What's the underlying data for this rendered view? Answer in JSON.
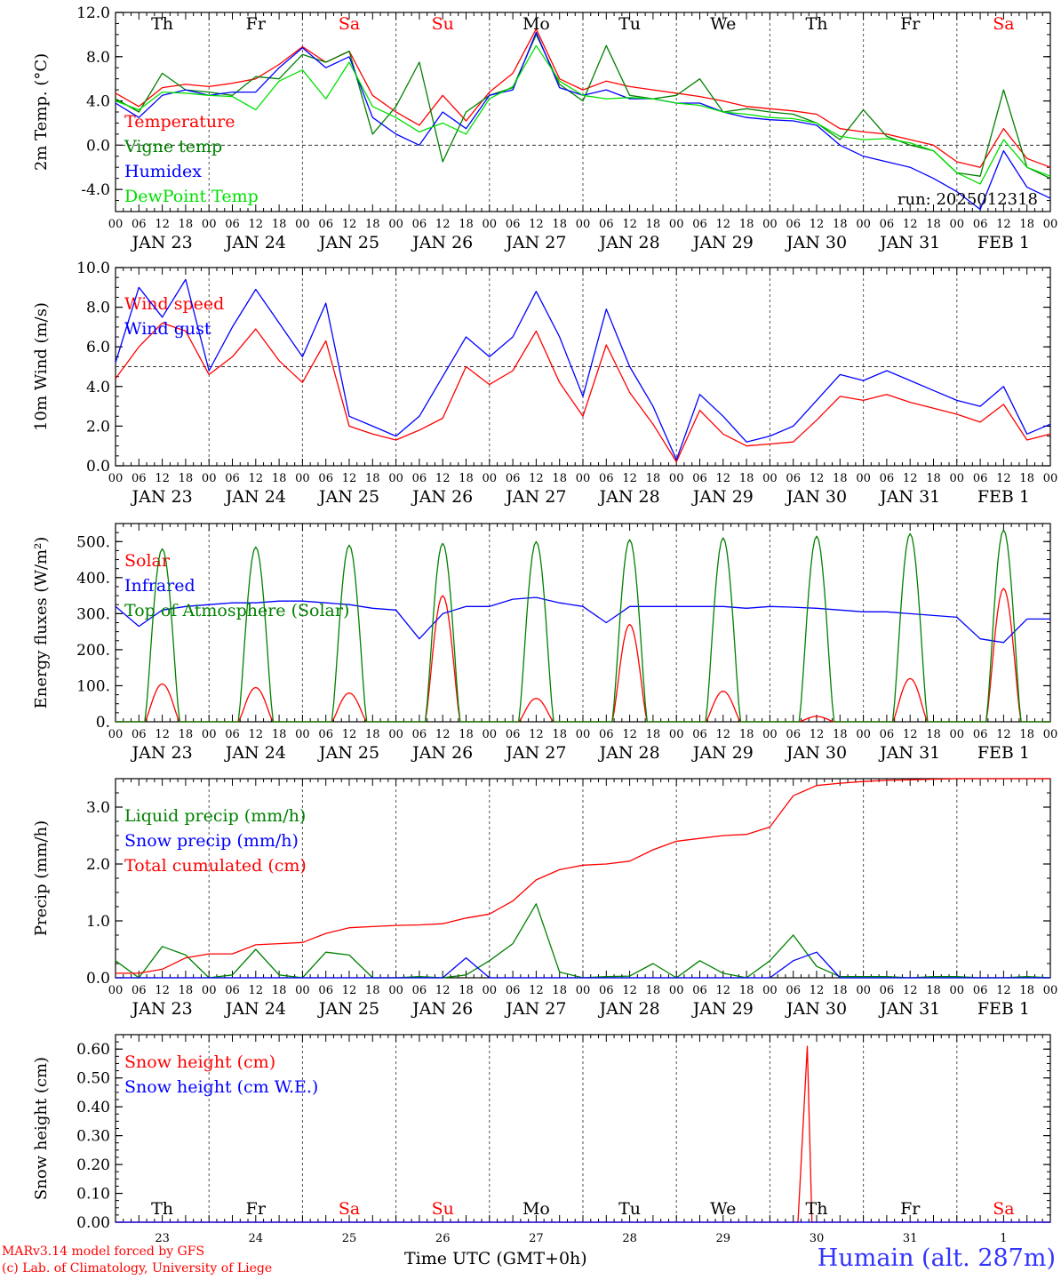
{
  "header": {
    "days_top": [
      "Th",
      "Fr",
      "Sa",
      "Su",
      "Mo",
      "Tu",
      "We",
      "Th",
      "Fr",
      "Sa"
    ],
    "weekend_indices": [
      2,
      3,
      9
    ],
    "hour_labels": [
      "00",
      "06",
      "12",
      "18"
    ],
    "date_labels": [
      "JAN 23",
      "JAN 24",
      "JAN 25",
      "JAN 26",
      "JAN 27",
      "JAN 28",
      "JAN 29",
      "JAN 30",
      "JAN 31",
      "FEB  1"
    ],
    "bottom_day_numbers": [
      "23",
      "24",
      "25",
      "26",
      "27",
      "28",
      "29",
      "30",
      "31",
      "1"
    ]
  },
  "footer": {
    "credit_line1": "MARv3.14 model forced by GFS",
    "credit_line2": "(c) Lab. of Climatology, University of Liege",
    "time_label": "Time UTC (GMT+0h)",
    "location": "Humain (alt. 287m)"
  },
  "colors": {
    "red": "#ff0000",
    "green": "#008000",
    "blue": "#0000ff",
    "lightgreen": "#00e000",
    "location": "#3333ff"
  },
  "chart_data": [
    {
      "type": "line",
      "ylabel": "2m Temp. (°C)",
      "ylim": [
        -6,
        12
      ],
      "yticks": [
        12,
        8,
        4,
        0,
        -4
      ],
      "ytick_labels": [
        "12.0",
        "8.0",
        "4.0",
        "0.0",
        "-4.0"
      ],
      "zero_line": 0,
      "annotation": "run: 2025012318",
      "x_days": [
        0,
        0.25,
        0.5,
        0.75,
        1,
        1.25,
        1.5,
        1.75,
        2,
        2.25,
        2.5,
        2.75,
        3,
        3.25,
        3.5,
        3.75,
        4,
        4.25,
        4.5,
        4.75,
        5,
        5.25,
        5.5,
        5.75,
        6,
        6.25,
        6.5,
        6.75,
        7,
        7.25,
        7.5,
        7.75,
        8,
        8.25,
        8.5,
        8.75,
        9,
        9.25,
        9.5,
        9.75,
        10
      ],
      "series": [
        {
          "name": "Temperature",
          "color": "red",
          "values": [
            4.7,
            3.5,
            5.2,
            5.5,
            5.3,
            5.6,
            6.0,
            7.3,
            8.9,
            7.5,
            8.5,
            4.5,
            3.0,
            1.8,
            4.5,
            2.2,
            4.8,
            6.5,
            10.5,
            6.0,
            5.0,
            5.8,
            5.3,
            5.0,
            4.7,
            4.4,
            4.0,
            3.5,
            3.3,
            3.1,
            2.8,
            1.5,
            1.2,
            1.0,
            0.5,
            0,
            -1.5,
            -2.0,
            1.5,
            -1.2,
            -2.0
          ]
        },
        {
          "name": "Vigne temp",
          "color": "green",
          "values": [
            4.2,
            3.0,
            6.5,
            5.0,
            4.8,
            4.5,
            6.2,
            6.0,
            8.2,
            7.5,
            8.5,
            1.0,
            3.5,
            7.5,
            -1.5,
            3.0,
            4.5,
            5.2,
            10.0,
            5.5,
            4.0,
            9.0,
            4.5,
            4.2,
            4.5,
            6.0,
            3.0,
            3.3,
            3.0,
            2.8,
            2.0,
            0.5,
            3.2,
            0.8,
            0,
            -0.5,
            -2.5,
            -2.8,
            5.0,
            -2.0,
            -3.0
          ]
        },
        {
          "name": "Humidex",
          "color": "blue",
          "values": [
            3.8,
            2.5,
            4.5,
            5.0,
            4.5,
            4.8,
            4.8,
            7.0,
            8.8,
            7.0,
            8.0,
            2.5,
            1.0,
            0,
            3.0,
            1.5,
            4.5,
            5.0,
            10.2,
            5.2,
            4.5,
            5.0,
            4.2,
            4.2,
            3.8,
            3.8,
            3.0,
            2.5,
            2.3,
            2.2,
            1.8,
            0,
            -1.0,
            -1.5,
            -2.0,
            -3.0,
            -4.2,
            -5.8,
            -0.5,
            -3.8,
            -4.8
          ]
        },
        {
          "name": "DewPoint Temp",
          "color": "lightgreen",
          "values": [
            4.0,
            3.2,
            4.8,
            4.7,
            4.5,
            4.4,
            3.2,
            5.8,
            6.8,
            4.2,
            7.5,
            3.5,
            2.5,
            1.2,
            2.0,
            1.0,
            4.2,
            5.3,
            9.0,
            5.8,
            4.5,
            4.2,
            4.3,
            4.2,
            3.8,
            3.6,
            3.0,
            2.8,
            2.5,
            2.4,
            2.0,
            0.8,
            0.5,
            0.6,
            0.2,
            -0.5,
            -2.5,
            -3.5,
            0.5,
            -2.0,
            -2.8
          ]
        }
      ]
    },
    {
      "type": "line",
      "ylabel": "10m Wind (m/s)",
      "ylim": [
        0,
        10
      ],
      "yticks": [
        10,
        8,
        6,
        4,
        2,
        0
      ],
      "ytick_labels": [
        "10.0",
        "8.0",
        "6.0",
        "4.0",
        "2.0",
        "0.0"
      ],
      "ref_line": 5,
      "x_days": [
        0,
        0.25,
        0.5,
        0.75,
        1,
        1.25,
        1.5,
        1.75,
        2,
        2.25,
        2.5,
        2.75,
        3,
        3.25,
        3.5,
        3.75,
        4,
        4.25,
        4.5,
        4.75,
        5,
        5.25,
        5.5,
        5.75,
        6,
        6.25,
        6.5,
        6.75,
        7,
        7.25,
        7.5,
        7.75,
        8,
        8.25,
        8.5,
        8.75,
        9,
        9.25,
        9.5,
        9.75,
        10
      ],
      "series": [
        {
          "name": "Wind speed",
          "color": "red",
          "values": [
            4.4,
            6.0,
            7.2,
            6.8,
            4.6,
            5.5,
            6.9,
            5.3,
            4.2,
            6.3,
            2.0,
            1.6,
            1.3,
            1.8,
            2.4,
            5.0,
            4.1,
            4.8,
            6.8,
            4.2,
            2.5,
            6.1,
            3.7,
            2.1,
            0.2,
            2.8,
            1.6,
            1.0,
            1.1,
            1.2,
            2.3,
            3.5,
            3.3,
            3.6,
            3.2,
            2.9,
            2.6,
            2.2,
            3.1,
            1.3,
            1.6
          ]
        },
        {
          "name": "Wind gust",
          "color": "blue",
          "values": [
            5.2,
            9.0,
            7.5,
            9.4,
            4.8,
            7.0,
            8.9,
            7.2,
            5.5,
            8.2,
            2.5,
            2.0,
            1.5,
            2.5,
            4.5,
            6.5,
            5.5,
            6.5,
            8.8,
            6.5,
            3.5,
            7.9,
            5.0,
            3.0,
            0.3,
            3.6,
            2.5,
            1.2,
            1.5,
            2.0,
            3.3,
            4.6,
            4.3,
            4.8,
            4.3,
            3.8,
            3.3,
            3.0,
            4.0,
            1.6,
            2.1
          ]
        }
      ]
    },
    {
      "type": "line",
      "ylabel": "Energy fluxes (W/m²)",
      "ylim": [
        0,
        550
      ],
      "yticks": [
        500,
        400,
        300,
        200,
        100,
        0
      ],
      "ytick_labels": [
        "500.",
        "400.",
        "300.",
        "200.",
        "100.",
        "0."
      ],
      "diurnal_days": [
        0,
        1,
        2,
        3,
        4,
        5,
        6,
        7,
        8,
        9
      ],
      "series": [
        {
          "name": "Solar",
          "color": "red",
          "peaks": [
            105,
            95,
            80,
            350,
            65,
            270,
            85,
            15,
            120,
            370
          ]
        },
        {
          "name": "Infrared",
          "color": "blue",
          "x_days": [
            0,
            0.25,
            0.5,
            0.75,
            1,
            1.25,
            1.5,
            1.75,
            2,
            2.25,
            2.5,
            2.75,
            3,
            3.25,
            3.5,
            3.75,
            4,
            4.25,
            4.5,
            4.75,
            5,
            5.25,
            5.5,
            5.75,
            6,
            6.25,
            6.5,
            6.75,
            7,
            7.25,
            7.5,
            7.75,
            8,
            8.25,
            8.5,
            8.75,
            9,
            9.25,
            9.5,
            9.75,
            10
          ],
          "values": [
            320,
            265,
            310,
            320,
            325,
            330,
            330,
            335,
            335,
            330,
            325,
            315,
            310,
            230,
            300,
            320,
            320,
            340,
            345,
            330,
            320,
            275,
            320,
            320,
            320,
            320,
            320,
            315,
            320,
            318,
            315,
            310,
            305,
            305,
            300,
            295,
            290,
            230,
            220,
            285,
            285
          ]
        },
        {
          "name": "Top of Atmosphere (Solar)",
          "color": "green",
          "peaks": [
            480,
            485,
            490,
            495,
            500,
            505,
            510,
            515,
            522,
            532
          ]
        }
      ]
    },
    {
      "type": "line",
      "ylabel": "Precip (mm/h)",
      "ylim": [
        0,
        3.5
      ],
      "yticks": [
        3,
        2,
        1,
        0
      ],
      "ytick_labels": [
        "3.0",
        "2.0",
        "1.0",
        "0.0"
      ],
      "x_days": [
        0,
        0.25,
        0.5,
        0.75,
        1,
        1.25,
        1.5,
        1.75,
        2,
        2.25,
        2.5,
        2.75,
        3,
        3.25,
        3.5,
        3.75,
        4,
        4.25,
        4.5,
        4.75,
        5,
        5.25,
        5.5,
        5.75,
        6,
        6.25,
        6.5,
        6.75,
        7,
        7.25,
        7.5,
        7.75,
        8,
        8.25,
        8.5,
        8.75,
        9,
        9.25,
        9.5,
        9.75,
        10
      ],
      "series": [
        {
          "name": "Liquid precip (mm/h)",
          "color": "green",
          "values": [
            0.3,
            0,
            0.55,
            0.4,
            0,
            0.05,
            0.5,
            0.05,
            0,
            0.45,
            0.4,
            0,
            0,
            0.02,
            0,
            0.05,
            0.3,
            0.6,
            1.3,
            0.1,
            0,
            0.02,
            0.03,
            0.25,
            0,
            0.3,
            0.08,
            0,
            0.3,
            0.75,
            0.2,
            0.02,
            0.02,
            0.02,
            0,
            0.02,
            0.02,
            0,
            0,
            0.02,
            0
          ]
        },
        {
          "name": "Snow precip (mm/h)",
          "color": "blue",
          "values": [
            0,
            0,
            0,
            0,
            0,
            0,
            0,
            0,
            0,
            0,
            0,
            0,
            0,
            0,
            0,
            0.35,
            0,
            0,
            0,
            0,
            0,
            0,
            0,
            0,
            0,
            0,
            0,
            0,
            0,
            0.3,
            0.45,
            0,
            0,
            0,
            0,
            0,
            0,
            0,
            0,
            0,
            0
          ]
        },
        {
          "name": "Total cumulated (cm)",
          "color": "red",
          "values": [
            0.08,
            0.08,
            0.15,
            0.35,
            0.42,
            0.42,
            0.58,
            0.6,
            0.62,
            0.78,
            0.88,
            0.9,
            0.92,
            0.93,
            0.95,
            1.05,
            1.12,
            1.35,
            1.72,
            1.9,
            1.98,
            2.0,
            2.05,
            2.25,
            2.4,
            2.45,
            2.5,
            2.52,
            2.65,
            3.2,
            3.38,
            3.42,
            3.45,
            3.47,
            3.48,
            3.49,
            3.5,
            3.5,
            3.5,
            3.5,
            3.5
          ]
        }
      ]
    },
    {
      "type": "line",
      "ylabel": "Snow height (cm)",
      "ylim": [
        0,
        0.65
      ],
      "yticks": [
        0.6,
        0.5,
        0.4,
        0.3,
        0.2,
        0.1,
        0.0
      ],
      "ytick_labels": [
        "0.60",
        "0.50",
        "0.40",
        "0.30",
        "0.20",
        "0.10",
        "0.00"
      ],
      "series": [
        {
          "name": "Snow height (cm)",
          "color": "red",
          "x_days": [
            0,
            7.3,
            7.4,
            7.45,
            7.5,
            10
          ],
          "values": [
            0,
            0,
            0.61,
            0,
            0,
            0
          ]
        },
        {
          "name": "Snow height (cm W.E.)",
          "color": "blue",
          "x_days": [
            0,
            10
          ],
          "values": [
            0,
            0
          ]
        }
      ]
    }
  ]
}
